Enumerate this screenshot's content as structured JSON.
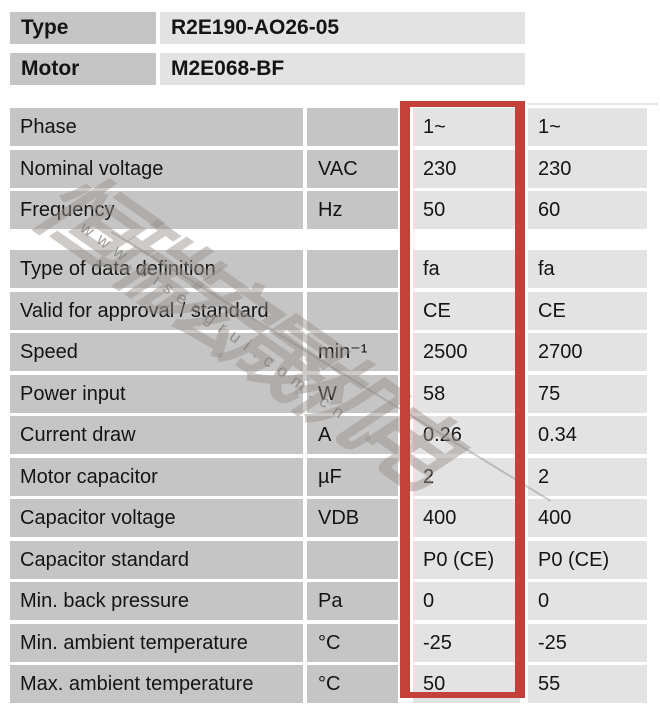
{
  "document": {
    "header": {
      "rows": [
        {
          "label": "Type",
          "value": "R2E190-AO26-05"
        },
        {
          "label": "Motor",
          "value": "M2E068-BF"
        }
      ]
    },
    "spec_table": {
      "rows": [
        {
          "label": "Phase",
          "unit": "",
          "values": [
            "1~",
            "1~"
          ]
        },
        {
          "label": "Nominal voltage",
          "unit": "VAC",
          "values": [
            "230",
            "230"
          ]
        },
        {
          "label": "Frequency",
          "unit": "Hz",
          "values": [
            "50",
            "60"
          ]
        },
        {
          "label": "Type of data definition",
          "unit": "",
          "values": [
            "fa",
            "fa"
          ]
        },
        {
          "label": "Valid for approval / standard",
          "unit": "",
          "values": [
            "CE",
            "CE"
          ]
        },
        {
          "label": "Speed",
          "unit": "min⁻¹",
          "values": [
            "2500",
            "2700"
          ]
        },
        {
          "label": "Power input",
          "unit": "W",
          "values": [
            "58",
            "75"
          ]
        },
        {
          "label": "Current draw",
          "unit": "A",
          "values": [
            "0.26",
            "0.34"
          ]
        },
        {
          "label": "Motor capacitor",
          "unit": "µF",
          "values": [
            "2",
            "2"
          ]
        },
        {
          "label": "Capacitor voltage",
          "unit": "VDB",
          "values": [
            "400",
            "400"
          ]
        },
        {
          "label": "Capacitor standard",
          "unit": "",
          "values": [
            "P0 (CE)",
            "P0 (CE)"
          ]
        },
        {
          "label": "Min. back pressure",
          "unit": "Pa",
          "values": [
            "0",
            "0"
          ]
        },
        {
          "label": "Min. ambient temperature",
          "unit": "°C",
          "values": [
            "-25",
            "-25"
          ]
        },
        {
          "label": "Max. ambient temperature",
          "unit": "°C",
          "values": [
            "50",
            "55"
          ]
        }
      ]
    },
    "highlight": {
      "color": "#c4403a"
    },
    "watermark": {
      "company": "恒瑞宏晟机电",
      "url": "www.bisengrui.com.cn"
    },
    "colors": {
      "cell_dark": "#c5c5c5",
      "cell_light": "#e3e3e3"
    }
  }
}
